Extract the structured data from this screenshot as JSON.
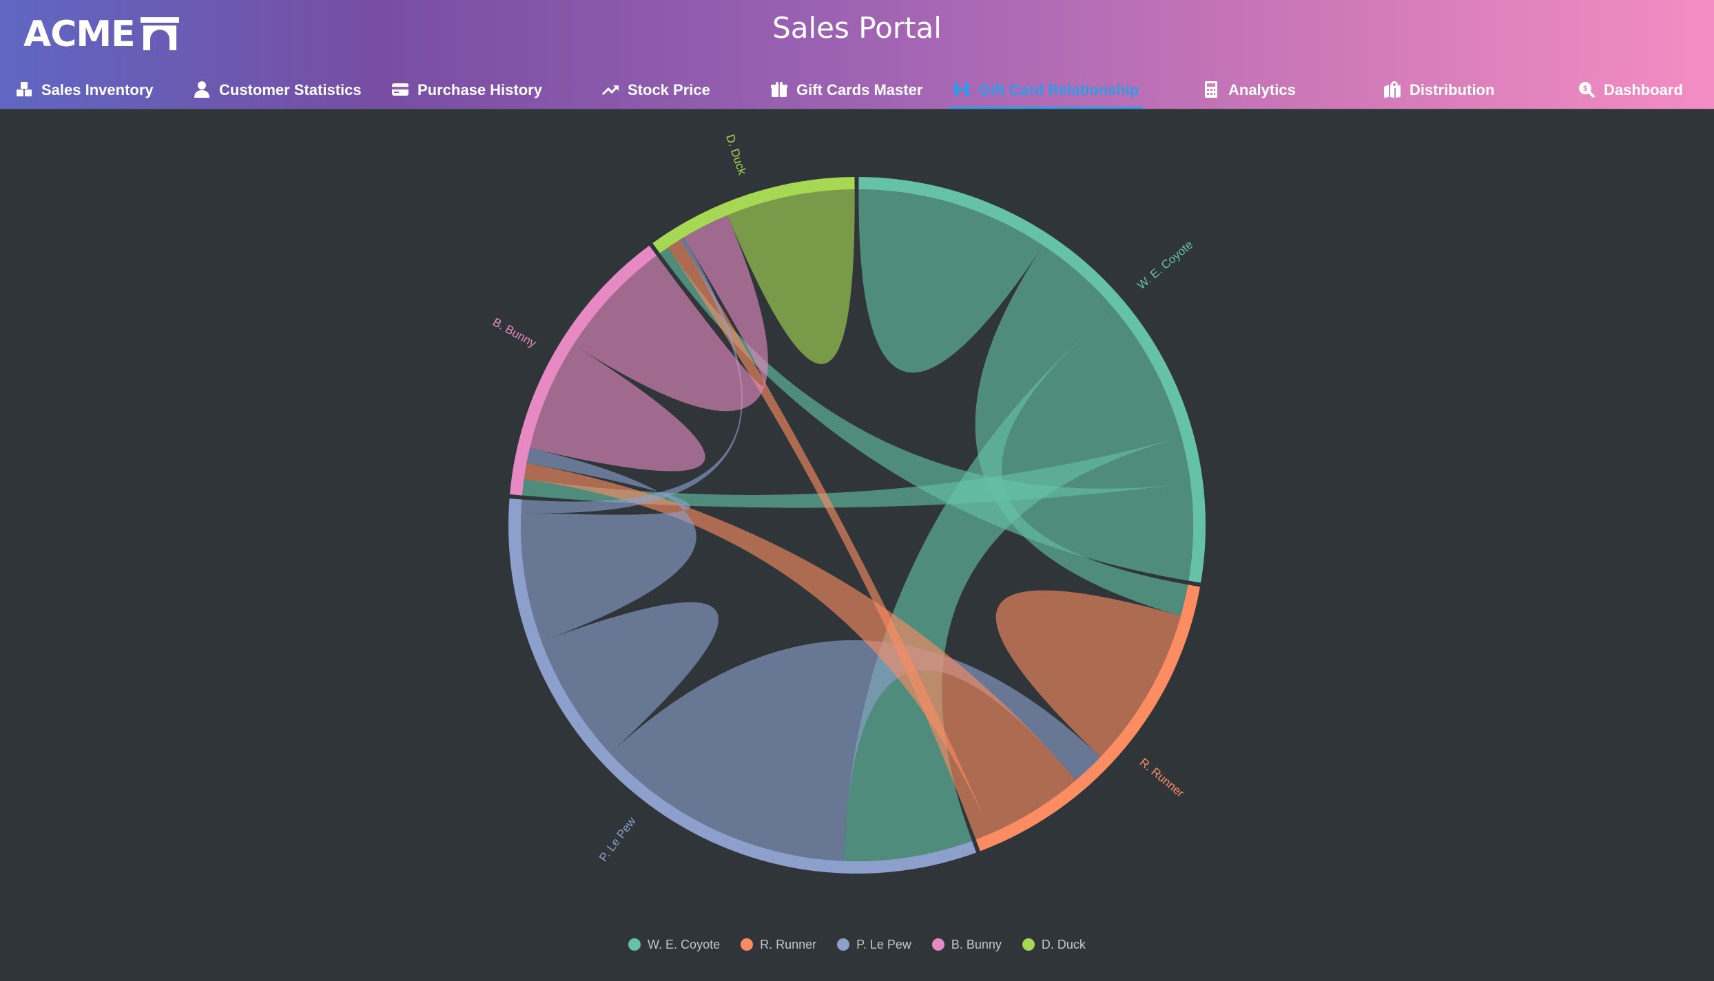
{
  "brand": {
    "logo_text": "ACME"
  },
  "header": {
    "title": "Sales Portal"
  },
  "nav": {
    "items": [
      {
        "label": "Sales Inventory",
        "icon": "boxes-icon",
        "active": false
      },
      {
        "label": "Customer Statistics",
        "icon": "user-icon",
        "active": false
      },
      {
        "label": "Purchase History",
        "icon": "credit-card-icon",
        "active": false
      },
      {
        "label": "Stock Price",
        "icon": "trend-up-icon",
        "active": false
      },
      {
        "label": "Gift Cards Master",
        "icon": "gift-icon",
        "active": false
      },
      {
        "label": "Gift Card Relationship",
        "icon": "link-icon",
        "active": true
      },
      {
        "label": "Analytics",
        "icon": "calculator-icon",
        "active": false
      },
      {
        "label": "Distribution",
        "icon": "map-icon",
        "active": false
      },
      {
        "label": "Dashboard",
        "icon": "search-dollar-icon",
        "active": false
      }
    ]
  },
  "chart_data": {
    "type": "chord",
    "groups": [
      {
        "name": "W. E. Coyote",
        "color": "#66c2a5"
      },
      {
        "name": "R. Runner",
        "color": "#fc8d62"
      },
      {
        "name": "P. Le Pew",
        "color": "#8da0cb"
      },
      {
        "name": "B. Bunny",
        "color": "#e78ac3"
      },
      {
        "name": "D. Duck",
        "color": "#a6d854"
      }
    ],
    "matrix": [
      [
        11975,
        5871,
        8916,
        2868,
        6000
      ],
      [
        1951,
        10048,
        2060,
        6171,
        1000
      ],
      [
        8010,
        16145,
        8090,
        8045,
        800
      ],
      [
        1013,
        990,
        940,
        6907,
        7500
      ],
      [
        600,
        900,
        250,
        3000,
        8000
      ]
    ],
    "legend_position": "bottom"
  }
}
